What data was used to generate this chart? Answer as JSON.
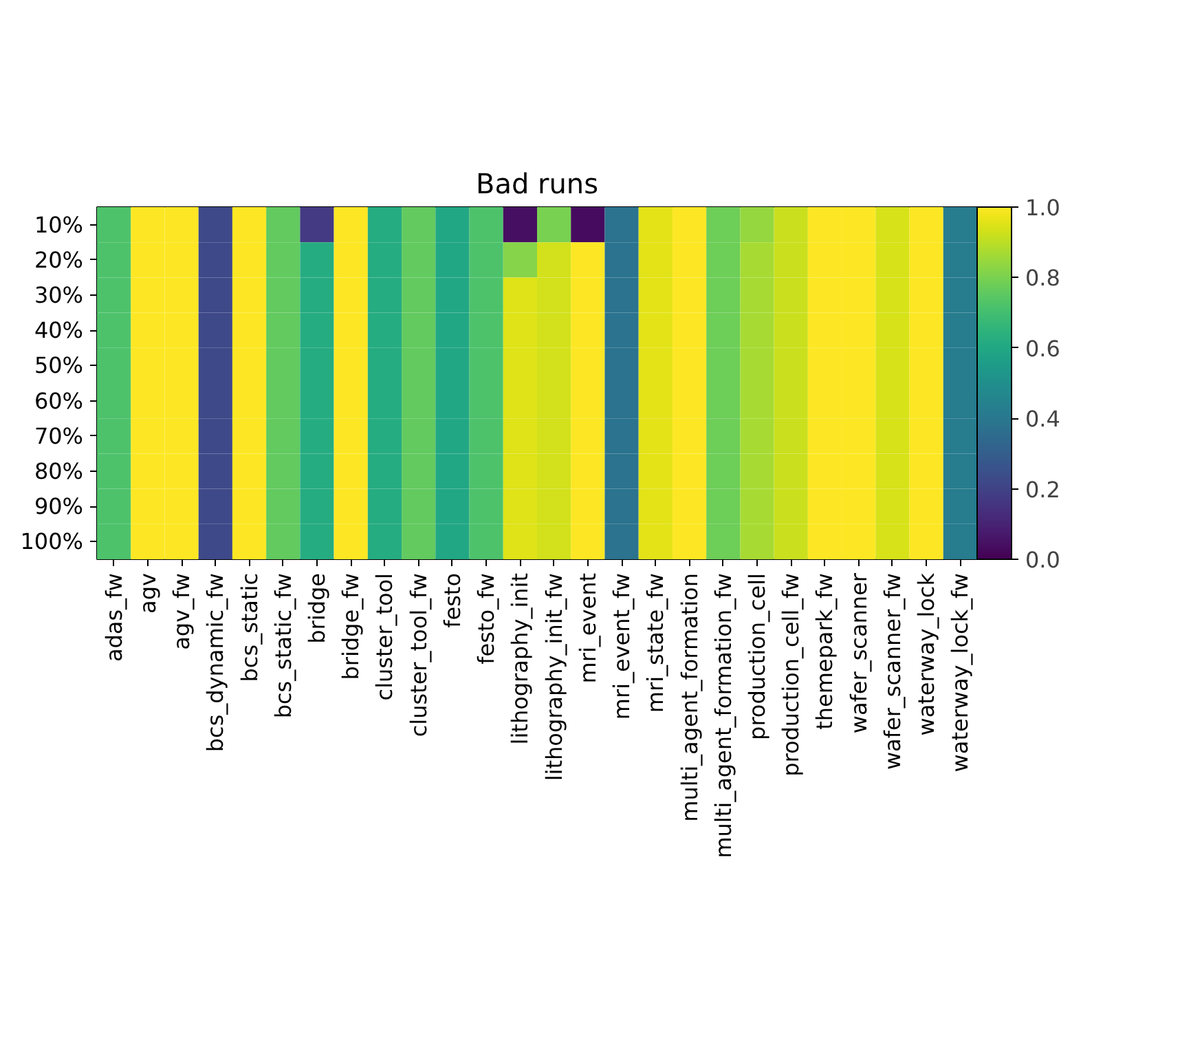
{
  "chart_data": {
    "type": "heatmap",
    "title": "Bad runs",
    "categories": [
      "adas_fw",
      "agv",
      "agv_fw",
      "bcs_dynamic_fw",
      "bcs_static",
      "bcs_static_fw",
      "bridge",
      "bridge_fw",
      "cluster_tool",
      "cluster_tool_fw",
      "festo",
      "festo_fw",
      "lithography_init",
      "lithography_init_fw",
      "mri_event",
      "mri_event_fw",
      "mri_state_fw",
      "multi_agent_formation",
      "multi_agent_formation_fw",
      "production_cell",
      "production_cell_fw",
      "themepark_fw",
      "wafer_scanner",
      "wafer_scanner_fw",
      "waterway_lock",
      "waterway_lock_fw"
    ],
    "y_categories": [
      "10%",
      "20%",
      "30%",
      "40%",
      "50%",
      "60%",
      "70%",
      "80%",
      "90%",
      "100%"
    ],
    "cells": [
      [
        0.72,
        1.0,
        1.0,
        0.22,
        1.0,
        0.76,
        0.17,
        1.0,
        0.62,
        0.76,
        0.6,
        0.72,
        0.04,
        0.8,
        0.03,
        0.38,
        0.96,
        1.0,
        0.78,
        0.84,
        0.92,
        1.0,
        1.0,
        0.94,
        1.0,
        0.42
      ],
      [
        0.72,
        1.0,
        1.0,
        0.22,
        1.0,
        0.76,
        0.62,
        1.0,
        0.62,
        0.76,
        0.6,
        0.72,
        0.82,
        0.93,
        1.0,
        0.38,
        0.96,
        1.0,
        0.78,
        0.87,
        0.92,
        1.0,
        1.0,
        0.94,
        1.0,
        0.42
      ],
      [
        0.72,
        1.0,
        1.0,
        0.22,
        1.0,
        0.76,
        0.62,
        1.0,
        0.62,
        0.76,
        0.6,
        0.72,
        0.95,
        0.93,
        1.0,
        0.38,
        0.96,
        1.0,
        0.78,
        0.87,
        0.92,
        1.0,
        1.0,
        0.94,
        1.0,
        0.42
      ],
      [
        0.72,
        1.0,
        1.0,
        0.22,
        1.0,
        0.76,
        0.62,
        1.0,
        0.62,
        0.76,
        0.6,
        0.72,
        0.95,
        0.93,
        1.0,
        0.38,
        0.96,
        1.0,
        0.78,
        0.87,
        0.92,
        1.0,
        1.0,
        0.94,
        1.0,
        0.42
      ],
      [
        0.72,
        1.0,
        1.0,
        0.22,
        1.0,
        0.76,
        0.62,
        1.0,
        0.62,
        0.76,
        0.6,
        0.72,
        0.95,
        0.93,
        1.0,
        0.38,
        0.96,
        1.0,
        0.78,
        0.87,
        0.92,
        1.0,
        1.0,
        0.94,
        1.0,
        0.42
      ],
      [
        0.72,
        1.0,
        1.0,
        0.22,
        1.0,
        0.76,
        0.62,
        1.0,
        0.62,
        0.76,
        0.6,
        0.72,
        0.95,
        0.93,
        1.0,
        0.38,
        0.96,
        1.0,
        0.78,
        0.87,
        0.92,
        1.0,
        1.0,
        0.94,
        1.0,
        0.42
      ],
      [
        0.72,
        1.0,
        1.0,
        0.22,
        1.0,
        0.76,
        0.62,
        1.0,
        0.62,
        0.76,
        0.6,
        0.72,
        0.95,
        0.93,
        1.0,
        0.38,
        0.96,
        1.0,
        0.78,
        0.87,
        0.92,
        1.0,
        1.0,
        0.94,
        1.0,
        0.42
      ],
      [
        0.72,
        1.0,
        1.0,
        0.22,
        1.0,
        0.76,
        0.62,
        1.0,
        0.62,
        0.76,
        0.6,
        0.72,
        0.95,
        0.93,
        1.0,
        0.38,
        0.96,
        1.0,
        0.78,
        0.87,
        0.92,
        1.0,
        1.0,
        0.94,
        1.0,
        0.42
      ],
      [
        0.72,
        1.0,
        1.0,
        0.22,
        1.0,
        0.76,
        0.62,
        1.0,
        0.62,
        0.76,
        0.6,
        0.72,
        0.95,
        0.93,
        1.0,
        0.38,
        0.96,
        1.0,
        0.78,
        0.87,
        0.92,
        1.0,
        1.0,
        0.94,
        1.0,
        0.42
      ],
      [
        0.72,
        1.0,
        1.0,
        0.22,
        1.0,
        0.76,
        0.62,
        1.0,
        0.62,
        0.76,
        0.6,
        0.72,
        0.95,
        0.93,
        1.0,
        0.38,
        0.96,
        1.0,
        0.78,
        0.87,
        0.92,
        1.0,
        1.0,
        0.94,
        1.0,
        0.42
      ]
    ],
    "clim": [
      0,
      1
    ],
    "cticks": [
      {
        "value": 0,
        "label": "0.0"
      },
      {
        "value": 0.2,
        "label": "0.2"
      },
      {
        "value": 0.4,
        "label": "0.4"
      },
      {
        "value": 0.6,
        "label": "0.6"
      },
      {
        "value": 0.8,
        "label": "0.8"
      },
      {
        "value": 1,
        "label": "1.0"
      }
    ]
  }
}
